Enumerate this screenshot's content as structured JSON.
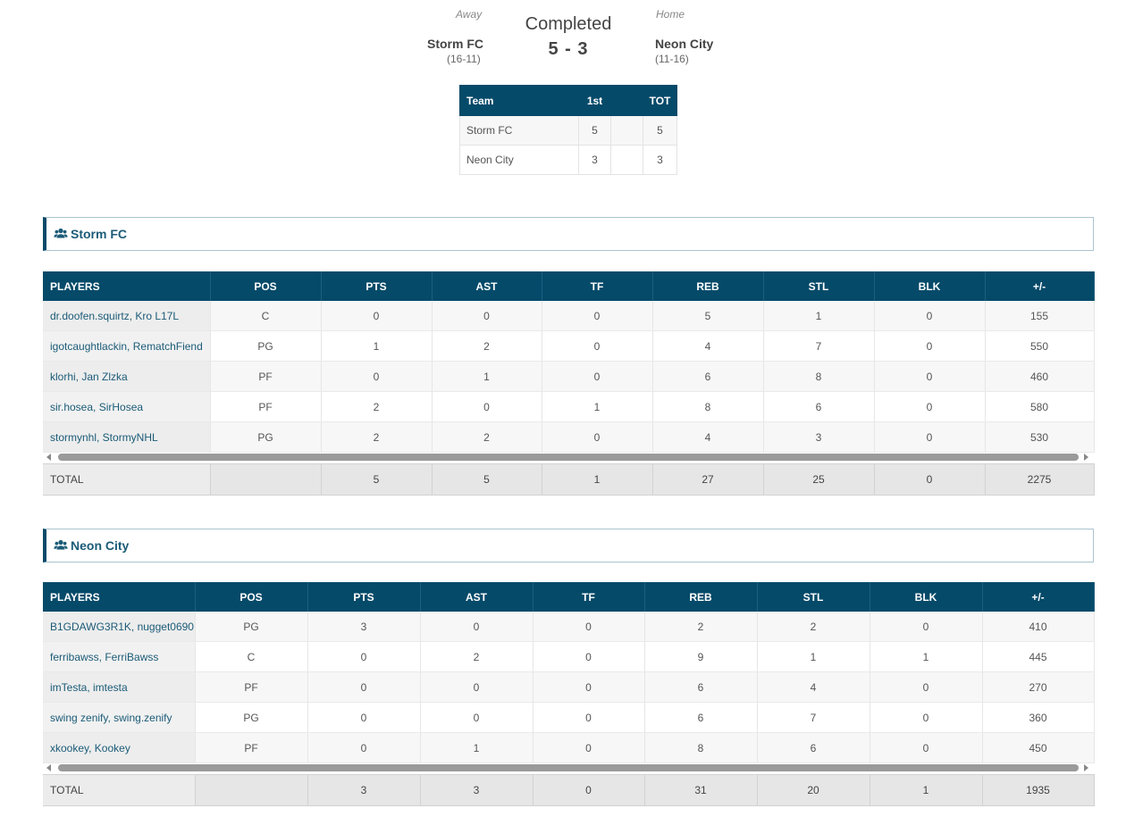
{
  "game": {
    "away_label": "Away",
    "home_label": "Home",
    "status": "Completed",
    "score": "5 - 3",
    "away_team": "Storm FC",
    "away_record": "(16-11)",
    "home_team": "Neon City",
    "home_record": "(11-16)"
  },
  "linescore": {
    "headers": [
      "Team",
      "1st",
      "",
      "TOT"
    ],
    "rows": [
      {
        "team": "Storm FC",
        "p1": "5",
        "blank": "",
        "tot": "5"
      },
      {
        "team": "Neon City",
        "p1": "3",
        "blank": "",
        "tot": "3"
      }
    ]
  },
  "columns": [
    "PLAYERS",
    "POS",
    "PTS",
    "AST",
    "TF",
    "REB",
    "STL",
    "BLK",
    "+/-"
  ],
  "teams": [
    {
      "name": "Storm FC",
      "icon": "users-icon",
      "players": [
        {
          "name": "dr.doofen.squirtz, Kro L17L",
          "pos": "C",
          "pts": "0",
          "ast": "0",
          "tf": "0",
          "reb": "5",
          "stl": "1",
          "blk": "0",
          "pm": "155"
        },
        {
          "name": "igotcaughtlackin, RematchFiend",
          "pos": "PG",
          "pts": "1",
          "ast": "2",
          "tf": "0",
          "reb": "4",
          "stl": "7",
          "blk": "0",
          "pm": "550"
        },
        {
          "name": "klorhi, Jan Zlzka",
          "pos": "PF",
          "pts": "0",
          "ast": "1",
          "tf": "0",
          "reb": "6",
          "stl": "8",
          "blk": "0",
          "pm": "460"
        },
        {
          "name": "sir.hosea, SirHosea",
          "pos": "PF",
          "pts": "2",
          "ast": "0",
          "tf": "1",
          "reb": "8",
          "stl": "6",
          "blk": "0",
          "pm": "580"
        },
        {
          "name": "stormynhl, StormyNHL",
          "pos": "PG",
          "pts": "2",
          "ast": "2",
          "tf": "0",
          "reb": "4",
          "stl": "3",
          "blk": "0",
          "pm": "530"
        }
      ],
      "total": {
        "label": "TOTAL",
        "pos": "",
        "pts": "5",
        "ast": "5",
        "tf": "1",
        "reb": "27",
        "stl": "25",
        "blk": "0",
        "pm": "2275"
      }
    },
    {
      "name": "Neon City",
      "icon": "users-icon",
      "players": [
        {
          "name": "B1GDAWG3R1K, nugget0690",
          "pos": "PG",
          "pts": "3",
          "ast": "0",
          "tf": "0",
          "reb": "2",
          "stl": "2",
          "blk": "0",
          "pm": "410"
        },
        {
          "name": "ferribawss, FerriBawss",
          "pos": "C",
          "pts": "0",
          "ast": "2",
          "tf": "0",
          "reb": "9",
          "stl": "1",
          "blk": "1",
          "pm": "445"
        },
        {
          "name": "imTesta, imtesta",
          "pos": "PF",
          "pts": "0",
          "ast": "0",
          "tf": "0",
          "reb": "6",
          "stl": "4",
          "blk": "0",
          "pm": "270"
        },
        {
          "name": "swing zenify, swing.zenify",
          "pos": "PG",
          "pts": "0",
          "ast": "0",
          "tf": "0",
          "reb": "6",
          "stl": "7",
          "blk": "0",
          "pm": "360"
        },
        {
          "name": "xkookey, Kookey",
          "pos": "PF",
          "pts": "0",
          "ast": "1",
          "tf": "0",
          "reb": "8",
          "stl": "6",
          "blk": "0",
          "pm": "450"
        }
      ],
      "total": {
        "label": "TOTAL",
        "pos": "",
        "pts": "3",
        "ast": "3",
        "tf": "0",
        "reb": "31",
        "stl": "20",
        "blk": "1",
        "pm": "1935"
      }
    }
  ],
  "colors": {
    "header_bg": "#054a69",
    "link": "#1b5b77",
    "total_bg": "#e6e6e6"
  }
}
